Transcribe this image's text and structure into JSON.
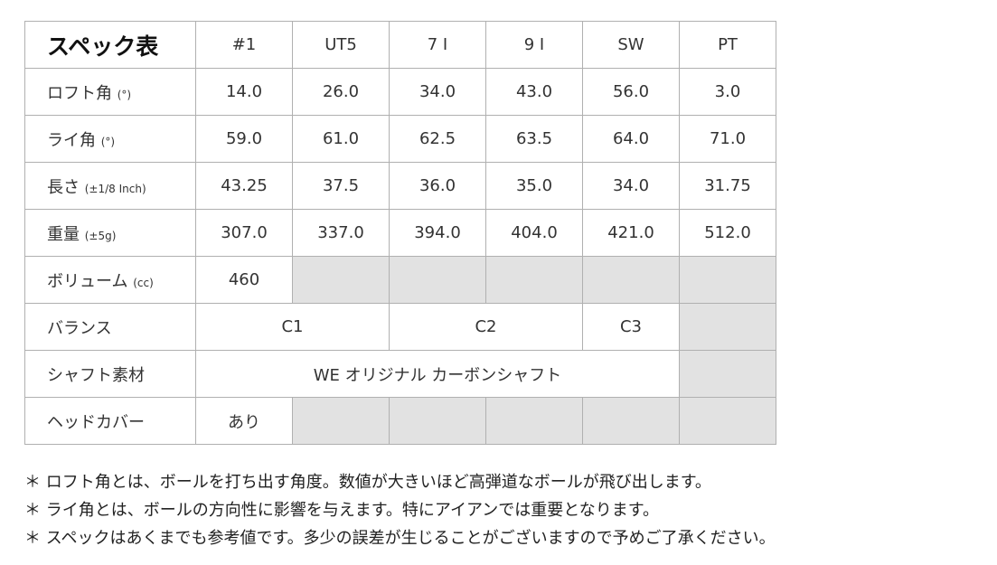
{
  "table": {
    "title": "スペック表",
    "columns": [
      "#1",
      "UT5",
      "7 I",
      "9 I",
      "SW",
      "PT"
    ],
    "rows": {
      "loft": {
        "label": "ロフト角",
        "unit": "(°)",
        "values": [
          "14.0",
          "26.0",
          "34.0",
          "43.0",
          "56.0",
          "3.0"
        ]
      },
      "lie": {
        "label": "ライ角",
        "unit": "(°)",
        "values": [
          "59.0",
          "61.0",
          "62.5",
          "63.5",
          "64.0",
          "71.0"
        ]
      },
      "length": {
        "label": "長さ",
        "unit": "(±1/8 Inch)",
        "values": [
          "43.25",
          "37.5",
          "36.0",
          "35.0",
          "34.0",
          "31.75"
        ]
      },
      "weight": {
        "label": "重量",
        "unit": "(±5g)",
        "values": [
          "307.0",
          "337.0",
          "394.0",
          "404.0",
          "421.0",
          "512.0"
        ]
      },
      "volume": {
        "label": "ボリューム",
        "unit": "(cc)",
        "value_1": "460"
      },
      "balance": {
        "label": "バランス",
        "c1": "C1",
        "c2": "C2",
        "c3": "C3"
      },
      "shaft": {
        "label": "シャフト素材",
        "value": "WE オリジナル カーボンシャフト"
      },
      "headcover": {
        "label": "ヘッドカバー",
        "value_1": "あり"
      }
    },
    "grey_color": "#e2e2e2"
  },
  "notes": [
    "＊ ロフト角とは、ボールを打ち出す角度。数値が大きいほど高弾道なボールが飛び出します。",
    "＊ ライ角とは、ボールの方向性に影響を与えます。特にアイアンでは重要となります。",
    "＊ スペックはあくまでも参考値です。多少の誤差が生じることがございますので予めご了承ください。"
  ]
}
